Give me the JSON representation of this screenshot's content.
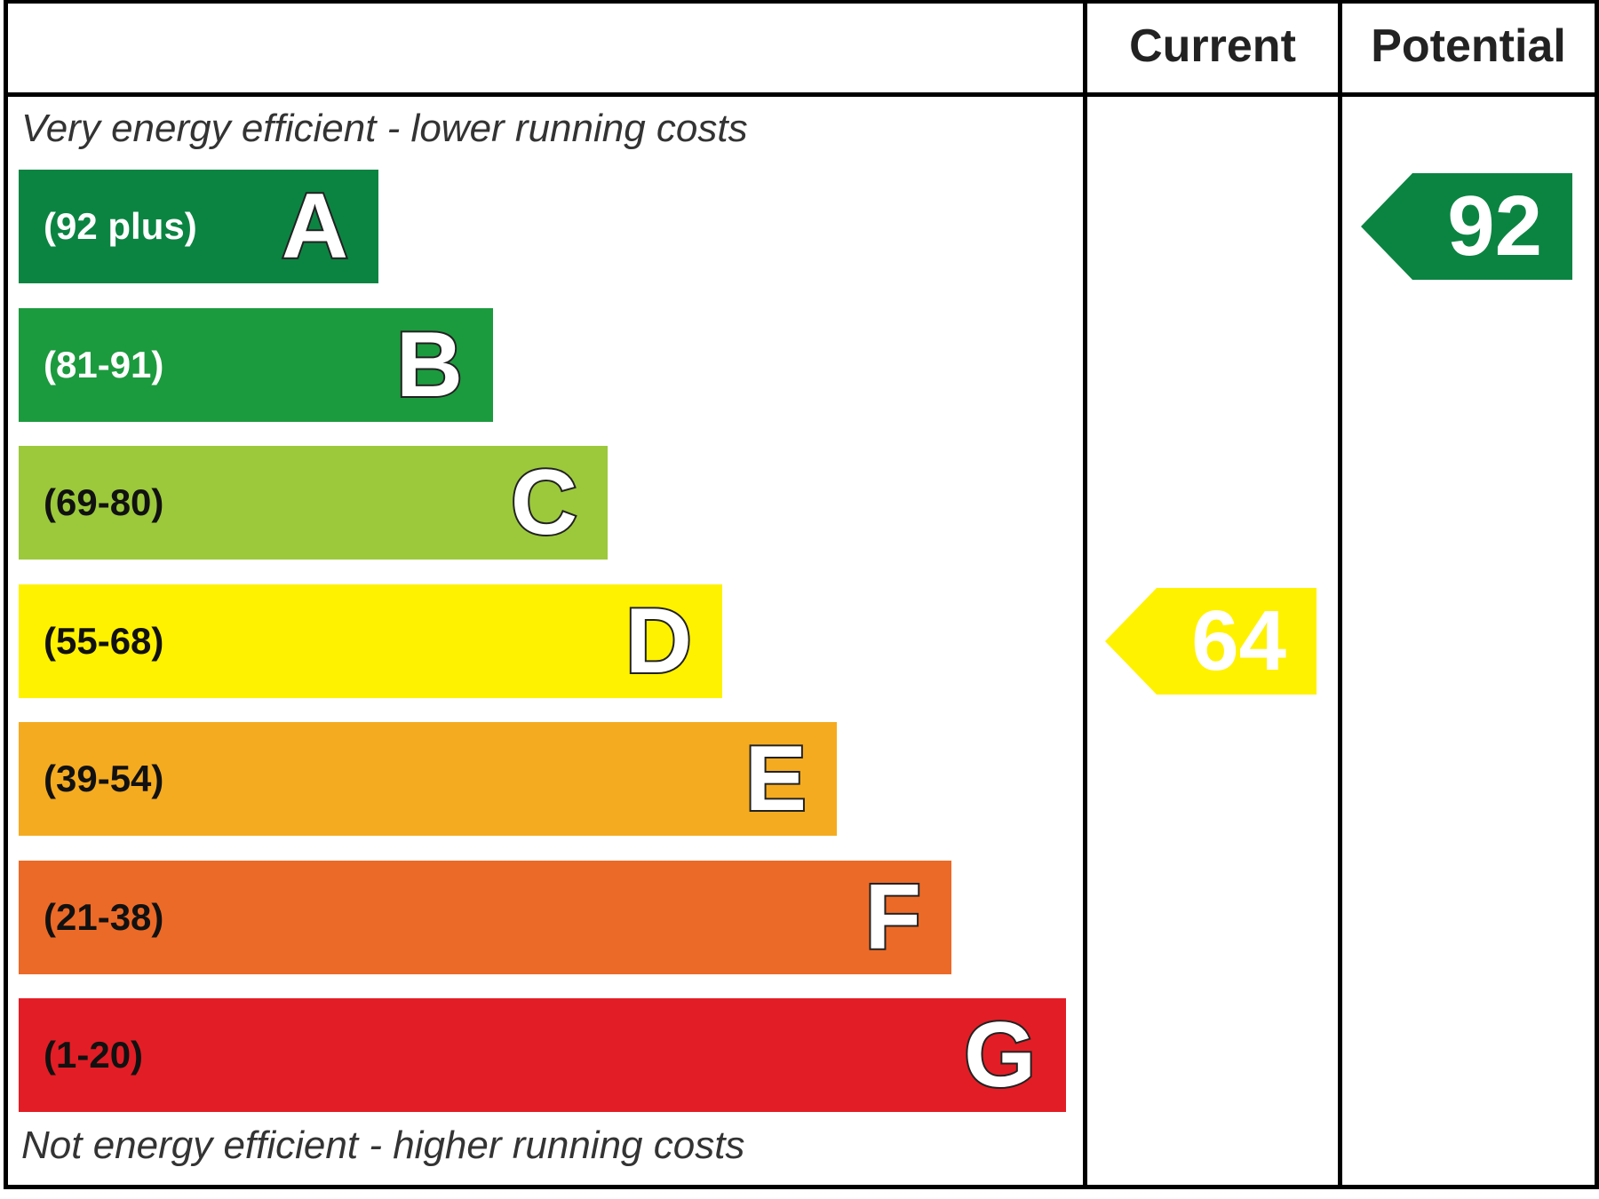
{
  "chart_data": {
    "type": "bar",
    "columns": [
      "Current",
      "Potential"
    ],
    "top_caption": "Very energy efficient - lower running costs",
    "bottom_caption": "Not energy efficient - higher running costs",
    "bands": [
      {
        "letter": "A",
        "range": "(92 plus)",
        "min": 92,
        "color": "#0b8442",
        "text_color": "#ffffff"
      },
      {
        "letter": "B",
        "range": "(81-91)",
        "min": 81,
        "color": "#1c9a3e",
        "text_color": "#ffffff"
      },
      {
        "letter": "C",
        "range": "(69-80)",
        "min": 69,
        "color": "#9cc93c",
        "text_color": "#111111"
      },
      {
        "letter": "D",
        "range": "(55-68)",
        "min": 55,
        "color": "#fff200",
        "text_color": "#111111"
      },
      {
        "letter": "E",
        "range": "(39-54)",
        "min": 39,
        "color": "#f5ab20",
        "text_color": "#111111"
      },
      {
        "letter": "F",
        "range": "(21-38)",
        "min": 21,
        "color": "#ec6a27",
        "text_color": "#111111"
      },
      {
        "letter": "G",
        "range": "(1-20)",
        "min": 1,
        "color": "#e31d25",
        "text_color": "#111111"
      }
    ],
    "ratings": [
      {
        "column": "Current",
        "value": 64,
        "band": "D",
        "color": "#fff200"
      },
      {
        "column": "Potential",
        "value": 92,
        "band": "A",
        "color": "#0b8442"
      }
    ]
  }
}
